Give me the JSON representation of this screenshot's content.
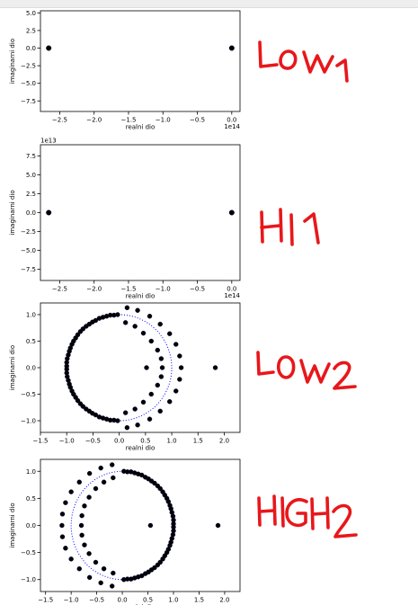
{
  "plots": [
    {
      "type": "scatter",
      "xlabel": "realni dio",
      "ylabel": "imaginarni dio",
      "x_offset_label": "1e14",
      "y_offset_label": "",
      "xlim": [
        -2.78,
        0.12
      ],
      "ylim": [
        -9.0,
        5.3
      ],
      "xticks": [
        -2.5,
        -2.0,
        -1.5,
        -1.0,
        -0.5,
        0.0
      ],
      "xtick_labels": [
        "−2.5",
        "−2.0",
        "−1.5",
        "−1.0",
        "−0.5",
        "0.0"
      ],
      "yticks": [
        5.0,
        2.5,
        0.0,
        -2.5,
        -5.0,
        -7.5
      ],
      "ytick_labels": [
        "5.0",
        "2.5",
        "0.0",
        "−2.5",
        "−5.0",
        "−7.5"
      ],
      "points": [
        [
          -2.66,
          0
        ],
        [
          0.0,
          0
        ]
      ],
      "circle": false
    },
    {
      "type": "scatter",
      "xlabel": "realni dio",
      "ylabel": "imaginarni dio",
      "x_offset_label": "1e14",
      "y_offset_label": "1e13",
      "xlim": [
        -2.78,
        0.12
      ],
      "ylim": [
        -9.0,
        9.0
      ],
      "xticks": [
        -2.5,
        -2.0,
        -1.5,
        -1.0,
        -0.5,
        0.0
      ],
      "xtick_labels": [
        "−2.5",
        "−2.0",
        "−1.5",
        "−1.0",
        "−0.5",
        "0.0"
      ],
      "yticks": [
        7.5,
        5.0,
        2.5,
        0.0,
        -2.5,
        -5.0,
        -7.5
      ],
      "ytick_labels": [
        "7.5",
        "5.0",
        "2.5",
        "0.0",
        "−2.5",
        "−5.0",
        "−7.5"
      ],
      "points": [
        [
          -2.66,
          0
        ],
        [
          0.0,
          0
        ]
      ],
      "circle": false
    },
    {
      "type": "scatter",
      "xlabel": "realni dio",
      "ylabel": "imaginarni dio",
      "x_offset_label": "",
      "y_offset_label": "",
      "xlim": [
        -1.5,
        2.3
      ],
      "ylim": [
        -1.22,
        1.22
      ],
      "xticks": [
        -1.5,
        -1.0,
        -0.5,
        0.0,
        0.5,
        1.0,
        1.5,
        2.0
      ],
      "xtick_labels": [
        "−1.5",
        "−1.0",
        "−0.5",
        "0.0",
        "0.5",
        "1.0",
        "1.5",
        "2.0"
      ],
      "yticks": [
        1.0,
        0.5,
        0.0,
        -0.5,
        -1.0
      ],
      "ytick_labels": [
        "1.0",
        "0.5",
        "0.0",
        "−0.5",
        "−1.0"
      ],
      "points": [
        [
          -0.03,
          1.0
        ],
        [
          -0.1,
          0.99
        ],
        [
          -0.17,
          0.99
        ],
        [
          -0.24,
          0.97
        ],
        [
          -0.31,
          0.95
        ],
        [
          -0.38,
          0.93
        ],
        [
          -0.45,
          0.89
        ],
        [
          -0.51,
          0.86
        ],
        [
          -0.57,
          0.82
        ],
        [
          -0.63,
          0.78
        ],
        [
          -0.69,
          0.73
        ],
        [
          -0.74,
          0.68
        ],
        [
          -0.79,
          0.62
        ],
        [
          -0.83,
          0.56
        ],
        [
          -0.87,
          0.5
        ],
        [
          -0.9,
          0.44
        ],
        [
          -0.93,
          0.37
        ],
        [
          -0.95,
          0.31
        ],
        [
          -0.97,
          0.24
        ],
        [
          -0.99,
          0.17
        ],
        [
          -1.0,
          0.1
        ],
        [
          -1.0,
          0.03
        ],
        [
          -0.03,
          -1.0
        ],
        [
          -0.1,
          -0.99
        ],
        [
          -0.17,
          -0.99
        ],
        [
          -0.24,
          -0.97
        ],
        [
          -0.31,
          -0.95
        ],
        [
          -0.38,
          -0.93
        ],
        [
          -0.45,
          -0.89
        ],
        [
          -0.51,
          -0.86
        ],
        [
          -0.57,
          -0.82
        ],
        [
          -0.63,
          -0.78
        ],
        [
          -0.69,
          -0.73
        ],
        [
          -0.74,
          -0.68
        ],
        [
          -0.79,
          -0.62
        ],
        [
          -0.83,
          -0.56
        ],
        [
          -0.87,
          -0.5
        ],
        [
          -0.9,
          -0.44
        ],
        [
          -0.93,
          -0.37
        ],
        [
          -0.95,
          -0.31
        ],
        [
          -0.97,
          -0.24
        ],
        [
          -0.99,
          -0.17
        ],
        [
          -1.0,
          -0.1
        ],
        [
          -1.0,
          -0.03
        ],
        [
          0.15,
          1.13
        ],
        [
          0.35,
          1.08
        ],
        [
          0.58,
          0.97
        ],
        [
          0.78,
          0.82
        ],
        [
          0.96,
          0.64
        ],
        [
          1.08,
          0.44
        ],
        [
          1.15,
          0.22
        ],
        [
          1.18,
          0.0
        ],
        [
          1.15,
          -0.22
        ],
        [
          1.08,
          -0.44
        ],
        [
          0.96,
          -0.64
        ],
        [
          0.78,
          -0.82
        ],
        [
          0.58,
          -0.97
        ],
        [
          0.35,
          -1.08
        ],
        [
          0.15,
          -1.13
        ],
        [
          0.12,
          0.85
        ],
        [
          0.3,
          0.78
        ],
        [
          0.46,
          0.65
        ],
        [
          0.61,
          0.5
        ],
        [
          0.73,
          0.33
        ],
        [
          0.8,
          0.17
        ],
        [
          0.82,
          0.0
        ],
        [
          0.8,
          -0.17
        ],
        [
          0.73,
          -0.33
        ],
        [
          0.61,
          -0.5
        ],
        [
          0.46,
          -0.65
        ],
        [
          0.3,
          -0.78
        ],
        [
          0.12,
          -0.85
        ],
        [
          0.52,
          0.0
        ],
        [
          1.83,
          0.0
        ]
      ],
      "circle": true
    },
    {
      "type": "scatter",
      "xlabel": "realni dio",
      "ylabel": "imaginarni dio",
      "x_offset_label": "",
      "y_offset_label": "",
      "xlim": [
        -1.6,
        2.3
      ],
      "ylim": [
        -1.22,
        1.22
      ],
      "xticks": [
        -1.5,
        -1.0,
        -0.5,
        0.0,
        0.5,
        1.0,
        1.5,
        2.0
      ],
      "xtick_labels": [
        "−1.5",
        "−1.0",
        "−0.5",
        "0.0",
        "0.5",
        "1.0",
        "1.5",
        "2.0"
      ],
      "yticks": [
        1.0,
        0.5,
        0.0,
        -0.5,
        -1.0
      ],
      "ytick_labels": [
        "1.0",
        "0.5",
        "0.0",
        "−0.5",
        "−1.0"
      ],
      "points": [
        [
          0.03,
          1.0
        ],
        [
          0.1,
          0.99
        ],
        [
          0.17,
          0.99
        ],
        [
          0.24,
          0.97
        ],
        [
          0.31,
          0.95
        ],
        [
          0.38,
          0.93
        ],
        [
          0.45,
          0.89
        ],
        [
          0.51,
          0.86
        ],
        [
          0.57,
          0.82
        ],
        [
          0.63,
          0.78
        ],
        [
          0.69,
          0.73
        ],
        [
          0.74,
          0.68
        ],
        [
          0.79,
          0.62
        ],
        [
          0.83,
          0.56
        ],
        [
          0.87,
          0.5
        ],
        [
          0.9,
          0.44
        ],
        [
          0.93,
          0.37
        ],
        [
          0.95,
          0.31
        ],
        [
          0.97,
          0.24
        ],
        [
          0.99,
          0.17
        ],
        [
          1.0,
          0.1
        ],
        [
          1.0,
          0.03
        ],
        [
          0.03,
          -1.0
        ],
        [
          0.1,
          -0.99
        ],
        [
          0.17,
          -0.99
        ],
        [
          0.24,
          -0.97
        ],
        [
          0.31,
          -0.95
        ],
        [
          0.38,
          -0.93
        ],
        [
          0.45,
          -0.89
        ],
        [
          0.51,
          -0.86
        ],
        [
          0.57,
          -0.82
        ],
        [
          0.63,
          -0.78
        ],
        [
          0.69,
          -0.73
        ],
        [
          0.74,
          -0.68
        ],
        [
          0.79,
          -0.62
        ],
        [
          0.83,
          -0.56
        ],
        [
          0.87,
          -0.5
        ],
        [
          0.9,
          -0.44
        ],
        [
          0.93,
          -0.37
        ],
        [
          0.95,
          -0.31
        ],
        [
          0.97,
          -0.24
        ],
        [
          0.99,
          -0.17
        ],
        [
          1.0,
          -0.1
        ],
        [
          1.0,
          -0.03
        ],
        [
          -0.2,
          1.12
        ],
        [
          -0.42,
          1.06
        ],
        [
          -0.64,
          0.96
        ],
        [
          -0.84,
          0.8
        ],
        [
          -1.0,
          0.62
        ],
        [
          -1.11,
          0.42
        ],
        [
          -1.17,
          0.21
        ],
        [
          -1.18,
          0.0
        ],
        [
          -1.17,
          -0.21
        ],
        [
          -1.11,
          -0.42
        ],
        [
          -1.0,
          -0.62
        ],
        [
          -0.84,
          -0.8
        ],
        [
          -0.64,
          -0.96
        ],
        [
          -0.42,
          -1.06
        ],
        [
          -0.2,
          -1.12
        ],
        [
          -0.18,
          0.88
        ],
        [
          -0.36,
          0.8
        ],
        [
          -0.52,
          0.68
        ],
        [
          -0.65,
          0.52
        ],
        [
          -0.74,
          0.36
        ],
        [
          -0.79,
          0.18
        ],
        [
          -0.8,
          0.0
        ],
        [
          -0.79,
          -0.18
        ],
        [
          -0.74,
          -0.36
        ],
        [
          -0.65,
          -0.52
        ],
        [
          -0.52,
          -0.68
        ],
        [
          -0.36,
          -0.8
        ],
        [
          -0.18,
          -0.88
        ],
        [
          0.55,
          0.0
        ],
        [
          1.87,
          0.0
        ]
      ],
      "circle": true
    }
  ],
  "annotations": [
    "LOW 1",
    "HI 1",
    "LOW 2",
    "HIGH 2"
  ],
  "colors": {
    "marker": "#000000",
    "marker_edge": "#000040",
    "circle": "#0000ff",
    "handwriting": "#e8171b",
    "axes": "#000000"
  }
}
